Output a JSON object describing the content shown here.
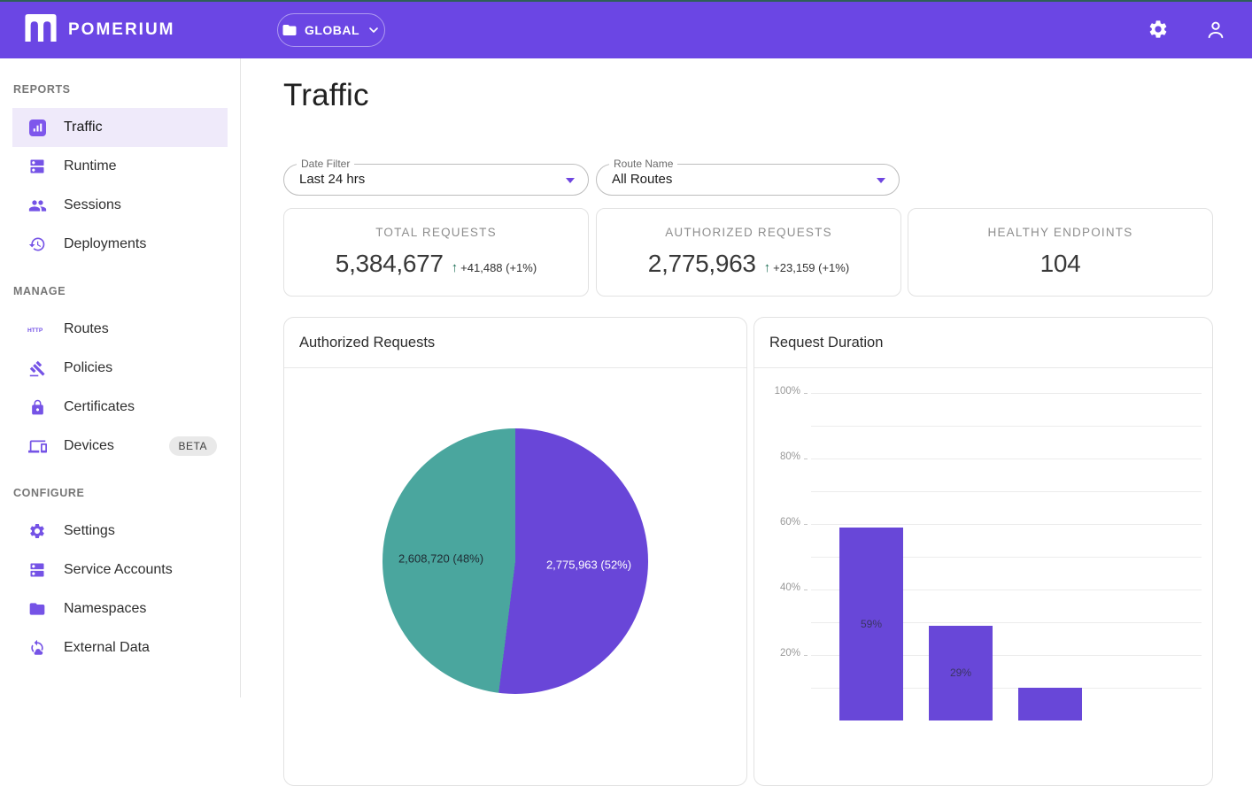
{
  "topbar": {
    "brand": "POMERIUM",
    "namespace_button": "GLOBAL"
  },
  "sidebar": {
    "sections": [
      {
        "title": "REPORTS",
        "items": [
          {
            "label": "Traffic",
            "icon": "traffic-chart",
            "selected": true
          },
          {
            "label": "Runtime",
            "icon": "dns"
          },
          {
            "label": "Sessions",
            "icon": "group"
          },
          {
            "label": "Deployments",
            "icon": "history"
          }
        ]
      },
      {
        "title": "MANAGE",
        "items": [
          {
            "label": "Routes",
            "icon": "http"
          },
          {
            "label": "Policies",
            "icon": "gavel"
          },
          {
            "label": "Certificates",
            "icon": "lock"
          },
          {
            "label": "Devices",
            "icon": "devices",
            "badge": "BETA"
          }
        ]
      },
      {
        "title": "CONFIGURE",
        "items": [
          {
            "label": "Settings",
            "icon": "gear"
          },
          {
            "label": "Service Accounts",
            "icon": "dns"
          },
          {
            "label": "Namespaces",
            "icon": "folder"
          },
          {
            "label": "External Data",
            "icon": "cloud-sync"
          }
        ]
      }
    ]
  },
  "main": {
    "title": "Traffic",
    "filters": {
      "date_filter": {
        "label": "Date Filter",
        "value": "Last 24 hrs"
      },
      "route_name": {
        "label": "Route Name",
        "value": "All Routes"
      }
    },
    "stats": [
      {
        "label": "TOTAL REQUESTS",
        "value": "5,384,677",
        "delta": "+41,488 (+1%)",
        "arrow": "↑"
      },
      {
        "label": "AUTHORIZED REQUESTS",
        "value": "2,775,963",
        "delta": "+23,159 (+1%)",
        "arrow": "↑"
      },
      {
        "label": "HEALTHY ENDPOINTS",
        "value": "104"
      }
    ]
  },
  "chart_data": [
    {
      "type": "pie",
      "title": "Authorized Requests",
      "start": "top",
      "direction": "clockwise",
      "legend": "none",
      "slices": [
        {
          "label": "2,775,963 (52%)",
          "value": 2775963,
          "percent": 52,
          "color": "#6946d8"
        },
        {
          "label": "2,608,720 (48%)",
          "value": 2608720,
          "percent": 48,
          "color": "#4aa69e"
        }
      ]
    },
    {
      "type": "bar",
      "title": "Request Duration",
      "ylim": [
        0,
        100
      ],
      "grid_step_percent": 10,
      "yticks": [
        {
          "pos": 100,
          "label": "100%"
        },
        {
          "pos": 80,
          "label": "80%"
        },
        {
          "pos": 60,
          "label": "60%"
        },
        {
          "pos": 40,
          "label": "40%"
        },
        {
          "pos": 20,
          "label": "20%"
        }
      ],
      "bars": [
        {
          "value": 59,
          "label": "59%"
        },
        {
          "value": 29,
          "label": "29%"
        },
        {
          "value": 10,
          "label": ""
        }
      ],
      "bar_color": "#6847d8",
      "x_axis_labels_visible": false
    }
  ],
  "colors": {
    "topbar": "#6b46e4",
    "top_stripe": "#2e5f58",
    "accent_icon": "#7553e6",
    "selected_bg": "#efeafa",
    "delta_green": "#1d6f56",
    "pie_purple": "#6946d8",
    "pie_teal": "#4aa69e"
  }
}
